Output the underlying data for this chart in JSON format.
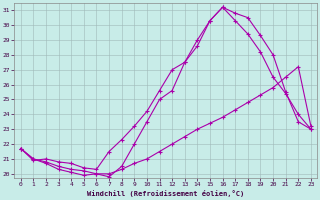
{
  "xlabel": "Windchill (Refroidissement éolien,°C)",
  "background_color": "#c8ece8",
  "line_color": "#aa00aa",
  "xlim": [
    -0.5,
    23.5
  ],
  "ylim": [
    19.7,
    31.5
  ],
  "yticks": [
    20,
    21,
    22,
    23,
    24,
    25,
    26,
    27,
    28,
    29,
    30,
    31
  ],
  "xticks": [
    0,
    1,
    2,
    3,
    4,
    5,
    6,
    7,
    8,
    9,
    10,
    11,
    12,
    13,
    14,
    15,
    16,
    17,
    18,
    19,
    20,
    21,
    22,
    23
  ],
  "curve1_x": [
    0,
    1,
    2,
    3,
    4,
    5,
    6,
    7,
    8,
    9,
    10,
    11,
    12,
    13,
    14,
    15,
    16,
    17,
    18,
    19,
    20,
    21,
    22,
    23
  ],
  "curve1_y": [
    21.7,
    21.0,
    20.7,
    20.3,
    20.1,
    19.9,
    20.0,
    19.8,
    20.5,
    22.0,
    23.5,
    25.0,
    25.6,
    27.5,
    29.0,
    30.3,
    31.2,
    30.8,
    30.5,
    29.3,
    28.0,
    25.5,
    23.5,
    23.0
  ],
  "curve2_x": [
    0,
    1,
    2,
    3,
    4,
    5,
    6,
    7,
    8,
    9,
    10,
    11,
    12,
    13,
    14,
    15,
    16,
    17,
    18,
    19,
    20,
    21,
    22,
    23
  ],
  "curve2_y": [
    21.7,
    20.9,
    21.0,
    20.8,
    20.7,
    20.4,
    20.3,
    21.5,
    22.3,
    23.2,
    24.2,
    25.6,
    27.0,
    27.5,
    28.6,
    30.3,
    31.2,
    30.3,
    29.4,
    28.2,
    26.5,
    25.4,
    24.0,
    23.0
  ],
  "curve3_x": [
    0,
    1,
    2,
    3,
    4,
    5,
    6,
    7,
    8,
    9,
    10,
    11,
    12,
    13,
    14,
    15,
    16,
    17,
    18,
    19,
    20,
    21,
    22,
    23
  ],
  "curve3_y": [
    21.7,
    21.0,
    20.8,
    20.5,
    20.3,
    20.2,
    20.0,
    20.0,
    20.3,
    20.7,
    21.0,
    21.5,
    22.0,
    22.5,
    23.0,
    23.4,
    23.8,
    24.3,
    24.8,
    25.3,
    25.8,
    26.5,
    27.2,
    23.2
  ]
}
